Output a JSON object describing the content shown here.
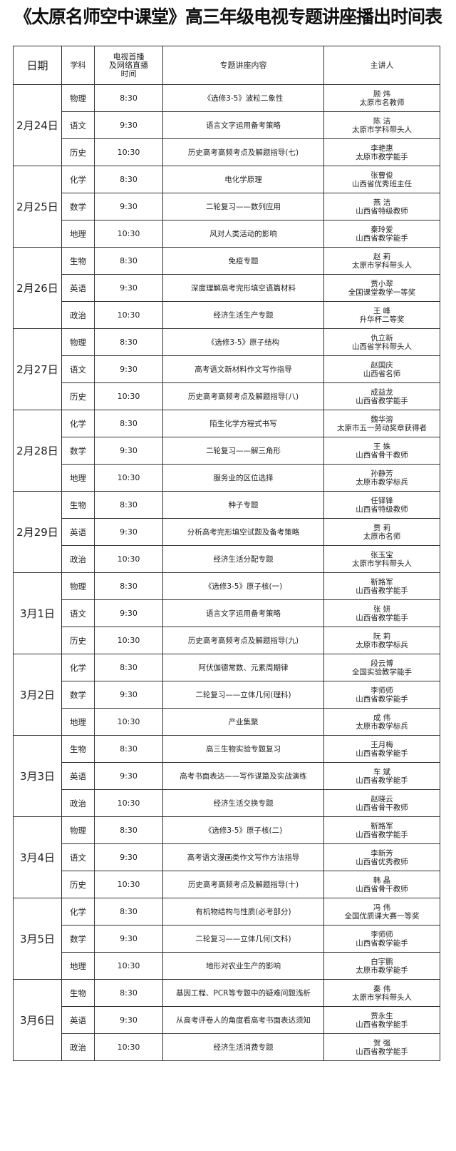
{
  "title": "《太原名师空中课堂》高三年级电视专题讲座播出时间表",
  "headers": {
    "date": "日期",
    "subject": "学科",
    "time": "电视首播\n及网络直播\n时间",
    "content": "专题讲座内容",
    "presenter": "主讲人"
  },
  "days": [
    {
      "date": "2月24日",
      "sessions": [
        {
          "subject": "物理",
          "time": "8:30",
          "content": "《选修3-5》波粒二象性",
          "name": "顾 炜",
          "honor": "太原市名教师"
        },
        {
          "subject": "语文",
          "time": "9:30",
          "content": "语言文字运用备考策略",
          "name": "陈 洁",
          "honor": "太原市学科带头人"
        },
        {
          "subject": "历史",
          "time": "10:30",
          "content": "历史高考高频考点及解题指导(七)",
          "name": "李艳惠",
          "honor": "太原市教学能手"
        }
      ]
    },
    {
      "date": "2月25日",
      "sessions": [
        {
          "subject": "化学",
          "time": "8:30",
          "content": "电化学原理",
          "name": "张曹俊",
          "honor": "山西省优秀班主任"
        },
        {
          "subject": "数学",
          "time": "9:30",
          "content": "二轮复习——数列应用",
          "name": "燕 洁",
          "honor": "山西省特级教师"
        },
        {
          "subject": "地理",
          "time": "10:30",
          "content": "风对人类活动的影响",
          "name": "秦玲爱",
          "honor": "山西省教学能手"
        }
      ]
    },
    {
      "date": "2月26日",
      "sessions": [
        {
          "subject": "生物",
          "time": "8:30",
          "content": "免疫专题",
          "name": "赵 莉",
          "honor": "太原市学科带头人"
        },
        {
          "subject": "英语",
          "time": "9:30",
          "content": "深度理解高考完形填空语篇材料",
          "name": "贾小翠",
          "honor": "全国课堂教学一等奖"
        },
        {
          "subject": "政治",
          "time": "10:30",
          "content": "经济生活生产专题",
          "name": "王 峰",
          "honor": "升华杯二等奖"
        }
      ]
    },
    {
      "date": "2月27日",
      "sessions": [
        {
          "subject": "物理",
          "time": "8:30",
          "content": "《选修3-5》原子结构",
          "name": "仇立新",
          "honor": "山西省学科带头人"
        },
        {
          "subject": "语文",
          "time": "9:30",
          "content": "高考语文新材料作文写作指导",
          "name": "赵国庆",
          "honor": "山西省名师"
        },
        {
          "subject": "历史",
          "time": "10:30",
          "content": "历史高考高频考点及解题指导(八)",
          "name": "成益龙",
          "honor": "山西省教学能手"
        }
      ]
    },
    {
      "date": "2月28日",
      "sessions": [
        {
          "subject": "化学",
          "time": "8:30",
          "content": "陌生化学方程式书写",
          "name": "魏华溶",
          "honor": "太原市五一劳动奖章获得者"
        },
        {
          "subject": "数学",
          "time": "9:30",
          "content": "二轮复习——解三角形",
          "name": "王 姝",
          "honor": "山西省骨干教师"
        },
        {
          "subject": "地理",
          "time": "10:30",
          "content": "服务业的区位选择",
          "name": "孙静芳",
          "honor": "太原市教学标兵"
        }
      ]
    },
    {
      "date": "2月29日",
      "sessions": [
        {
          "subject": "生物",
          "time": "8:30",
          "content": "种子专题",
          "name": "任铎锋",
          "honor": "山西省特级教师"
        },
        {
          "subject": "英语",
          "time": "9:30",
          "content": "分析高考完形填空试题及备考策略",
          "name": "贾 莉",
          "honor": "太原市名师"
        },
        {
          "subject": "政治",
          "time": "10:30",
          "content": "经济生活分配专题",
          "name": "张玉宝",
          "honor": "太原市学科带头人"
        }
      ]
    },
    {
      "date": "3月1日",
      "sessions": [
        {
          "subject": "物理",
          "time": "8:30",
          "content": "《选修3-5》原子核(一)",
          "name": "靳路军",
          "honor": "山西省教学能手"
        },
        {
          "subject": "语文",
          "time": "9:30",
          "content": "语言文字运用备考策略",
          "name": "张 妍",
          "honor": "山西省教学能手"
        },
        {
          "subject": "历史",
          "time": "10:30",
          "content": "历史高考高频考点及解题指导(九)",
          "name": "阮 莉",
          "honor": "太原市教学标兵"
        }
      ]
    },
    {
      "date": "3月2日",
      "sessions": [
        {
          "subject": "化学",
          "time": "8:30",
          "content": "阿伏伽德常数、元素周期律",
          "name": "段云博",
          "honor": "全国实验教学能手"
        },
        {
          "subject": "数学",
          "time": "9:30",
          "content": "二轮复习——立体几何(理科)",
          "name": "李师师",
          "honor": "山西省教学能手"
        },
        {
          "subject": "地理",
          "time": "10:30",
          "content": "产业集聚",
          "name": "成 伟",
          "honor": "太原市教学标兵"
        }
      ]
    },
    {
      "date": "3月3日",
      "sessions": [
        {
          "subject": "生物",
          "time": "8:30",
          "content": "高三生物实验专题复习",
          "name": "王月梅",
          "honor": "山西省教学能手"
        },
        {
          "subject": "英语",
          "time": "9:30",
          "content": "高考书面表达——写作谋篇及实战演练",
          "name": "车 斌",
          "honor": "山西省教学能手"
        },
        {
          "subject": "政治",
          "time": "10:30",
          "content": "经济生活交换专题",
          "name": "赵晓云",
          "honor": "山西省骨干教师"
        }
      ]
    },
    {
      "date": "3月4日",
      "sessions": [
        {
          "subject": "物理",
          "time": "8:30",
          "content": "《选修3-5》原子核(二)",
          "name": "靳路军",
          "honor": "山西省教学能手"
        },
        {
          "subject": "语文",
          "time": "9:30",
          "content": "高考语文漫画类作文写作方法指导",
          "name": "李新芳",
          "honor": "山西省优秀教师"
        },
        {
          "subject": "历史",
          "time": "10:30",
          "content": "历史高考高频考点及解题指导(十)",
          "name": "韩 晶",
          "honor": "山西省骨干教师"
        }
      ]
    },
    {
      "date": "3月5日",
      "sessions": [
        {
          "subject": "化学",
          "time": "8:30",
          "content": "有机物结构与性质(必考部分)",
          "name": "冯 伟",
          "honor": "全国优质课大赛一等奖"
        },
        {
          "subject": "数学",
          "time": "9:30",
          "content": "二轮复习——立体几何(文科)",
          "name": "李师师",
          "honor": "山西省教学能手"
        },
        {
          "subject": "地理",
          "time": "10:30",
          "content": "地形对农业生产的影响",
          "name": "白宇鹏",
          "honor": "太原市教学能手"
        }
      ]
    },
    {
      "date": "3月6日",
      "sessions": [
        {
          "subject": "生物",
          "time": "8:30",
          "content": "基因工程、PCR等专题中的疑难问题浅析",
          "name": "秦 伟",
          "honor": "太原市学科带头人"
        },
        {
          "subject": "英语",
          "time": "9:30",
          "content": "从高考评卷人的角度看高考书面表达须知",
          "name": "贾永生",
          "honor": "山西省教学能手"
        },
        {
          "subject": "政治",
          "time": "10:30",
          "content": "经济生活消费专题",
          "name": "贺 强",
          "honor": "山西省教学能手"
        }
      ]
    }
  ]
}
